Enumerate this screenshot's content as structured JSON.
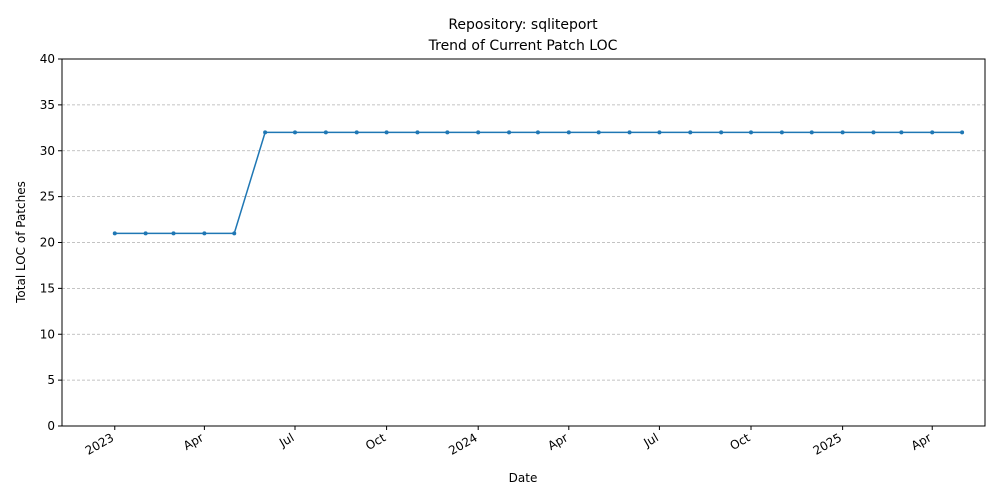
{
  "chart_data": {
    "type": "line",
    "title_line1": "Repository: sqliteport",
    "title_line2": "Trend of Current Patch LOC",
    "xlabel": "Date",
    "ylabel": "Total LOC of Patches",
    "ylim": [
      0,
      40
    ],
    "xlim": [
      "2022-11-09",
      "2025-05-24"
    ],
    "y_ticks": [
      0,
      5,
      10,
      15,
      20,
      25,
      30,
      35,
      40
    ],
    "x_ticks": [
      {
        "date": "2023-01-01",
        "label": "2023"
      },
      {
        "date": "2023-04-01",
        "label": "Apr"
      },
      {
        "date": "2023-07-01",
        "label": "Jul"
      },
      {
        "date": "2023-10-01",
        "label": "Oct"
      },
      {
        "date": "2024-01-01",
        "label": "2024"
      },
      {
        "date": "2024-04-01",
        "label": "Apr"
      },
      {
        "date": "2024-07-01",
        "label": "Jul"
      },
      {
        "date": "2024-10-01",
        "label": "Oct"
      },
      {
        "date": "2025-01-01",
        "label": "2025"
      },
      {
        "date": "2025-04-01",
        "label": "Apr"
      }
    ],
    "grid": "y-dashed",
    "series": [
      {
        "color": "#1f77b4",
        "x": [
          "2023-01-01",
          "2023-02-01",
          "2023-03-01",
          "2023-04-01",
          "2023-05-01",
          "2023-06-01",
          "2023-07-01",
          "2023-08-01",
          "2023-09-01",
          "2023-10-01",
          "2023-11-01",
          "2023-12-01",
          "2024-01-01",
          "2024-02-01",
          "2024-03-01",
          "2024-04-01",
          "2024-05-01",
          "2024-06-01",
          "2024-07-01",
          "2024-08-01",
          "2024-09-01",
          "2024-10-01",
          "2024-11-01",
          "2024-12-01",
          "2025-01-01",
          "2025-02-01",
          "2025-03-01",
          "2025-04-01",
          "2025-05-01"
        ],
        "y": [
          21,
          21,
          21,
          21,
          21,
          32,
          32,
          32,
          32,
          32,
          32,
          32,
          32,
          32,
          32,
          32,
          32,
          32,
          32,
          32,
          32,
          32,
          32,
          32,
          32,
          32,
          32,
          32,
          32
        ]
      }
    ]
  }
}
